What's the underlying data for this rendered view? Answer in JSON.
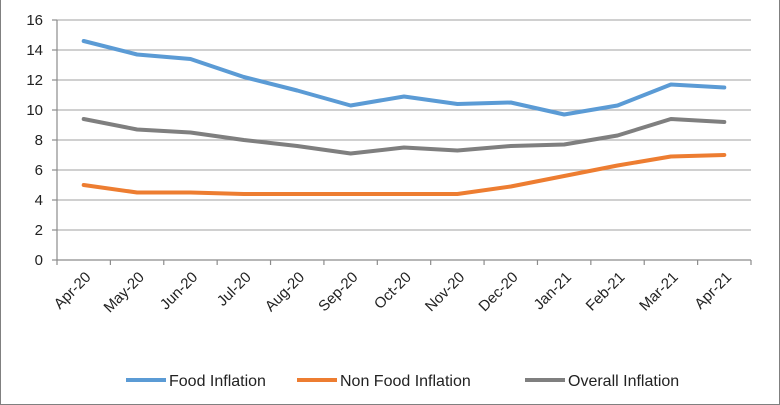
{
  "chart_data": {
    "type": "line",
    "title": "",
    "xlabel": "",
    "ylabel": "",
    "categories": [
      "Apr-20",
      "May-20",
      "Jun-20",
      "Jul-20",
      "Aug-20",
      "Sep-20",
      "Oct-20",
      "Nov-20",
      "Dec-20",
      "Jan-21",
      "Feb-21",
      "Mar-21",
      "Apr-21"
    ],
    "ylim": [
      0,
      16
    ],
    "yticks": [
      "0",
      "2",
      "4",
      "6",
      "8",
      "10",
      "12",
      "14",
      "16"
    ],
    "grid": true,
    "legend_position": "bottom",
    "series": [
      {
        "name": "Food Inflation",
        "color": "#5B9BD5",
        "values": [
          14.6,
          13.7,
          13.4,
          12.2,
          11.3,
          10.3,
          10.9,
          10.4,
          10.5,
          9.7,
          10.3,
          11.7,
          11.5
        ]
      },
      {
        "name": "Non Food Inflation",
        "color": "#ED7D31",
        "values": [
          5.0,
          4.5,
          4.5,
          4.4,
          4.4,
          4.4,
          4.4,
          4.4,
          4.9,
          5.6,
          6.3,
          6.9,
          7.0
        ]
      },
      {
        "name": "Overall Inflation",
        "color": "#7F7F7F",
        "values": [
          9.4,
          8.7,
          8.5,
          8.0,
          7.6,
          7.1,
          7.5,
          7.3,
          7.6,
          7.7,
          8.3,
          9.4,
          9.2
        ]
      }
    ]
  }
}
